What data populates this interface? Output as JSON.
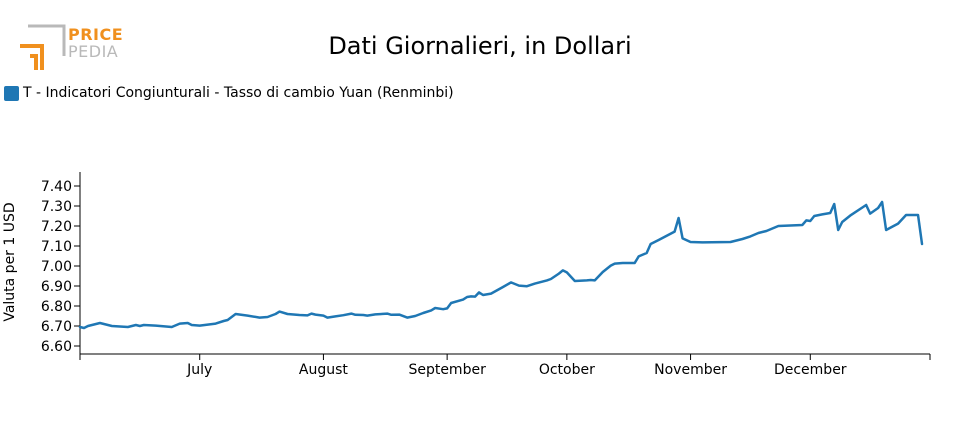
{
  "logo": {
    "line1": "PRICE",
    "line2": "PEDIA"
  },
  "chart_data": {
    "type": "line",
    "title": "Dati Giornalieri, in Dollari",
    "ylabel": "Valuta per 1 USD",
    "xlabel": "",
    "ylim": [
      6.56,
      7.47
    ],
    "yticks": [
      "6.60",
      "6.70",
      "6.80",
      "6.90",
      "7.00",
      "7.10",
      "7.20",
      "7.30",
      "7.40"
    ],
    "xlim": [
      "2022-06-01",
      "2022-12-31"
    ],
    "xticks": [
      {
        "date": "2022-07-01",
        "label": "July"
      },
      {
        "date": "2022-08-01",
        "label": "August"
      },
      {
        "date": "2022-09-01",
        "label": "September"
      },
      {
        "date": "2022-10-01",
        "label": "October"
      },
      {
        "date": "2022-11-01",
        "label": "November"
      },
      {
        "date": "2022-12-01",
        "label": "December"
      }
    ],
    "series": [
      {
        "name": "T - Indicatori Congiunturali - Tasso di cambio Yuan (Renminbi)",
        "color": "#1f77b4",
        "points": [
          [
            "2022-06-01",
            6.695
          ],
          [
            "2022-06-02",
            6.69
          ],
          [
            "2022-06-03",
            6.7
          ],
          [
            "2022-06-06",
            6.715
          ],
          [
            "2022-06-07",
            6.71
          ],
          [
            "2022-06-09",
            6.7
          ],
          [
            "2022-06-13",
            6.695
          ],
          [
            "2022-06-14",
            6.7
          ],
          [
            "2022-06-15",
            6.705
          ],
          [
            "2022-06-16",
            6.7
          ],
          [
            "2022-06-17",
            6.705
          ],
          [
            "2022-06-20",
            6.702
          ],
          [
            "2022-06-24",
            6.695
          ],
          [
            "2022-06-26",
            6.712
          ],
          [
            "2022-06-28",
            6.715
          ],
          [
            "2022-06-29",
            6.705
          ],
          [
            "2022-07-01",
            6.702
          ],
          [
            "2022-07-05",
            6.712
          ],
          [
            "2022-07-07",
            6.725
          ],
          [
            "2022-07-08",
            6.73
          ],
          [
            "2022-07-10",
            6.76
          ],
          [
            "2022-07-13",
            6.752
          ],
          [
            "2022-07-16",
            6.742
          ],
          [
            "2022-07-18",
            6.745
          ],
          [
            "2022-07-20",
            6.76
          ],
          [
            "2022-07-21",
            6.772
          ],
          [
            "2022-07-23",
            6.76
          ],
          [
            "2022-07-26",
            6.755
          ],
          [
            "2022-07-28",
            6.753
          ],
          [
            "2022-07-29",
            6.762
          ],
          [
            "2022-07-30",
            6.757
          ],
          [
            "2022-08-01",
            6.752
          ],
          [
            "2022-08-02",
            6.742
          ],
          [
            "2022-08-04",
            6.748
          ],
          [
            "2022-08-06",
            6.754
          ],
          [
            "2022-08-08",
            6.762
          ],
          [
            "2022-08-09",
            6.756
          ],
          [
            "2022-08-11",
            6.755
          ],
          [
            "2022-08-12",
            6.752
          ],
          [
            "2022-08-14",
            6.758
          ],
          [
            "2022-08-17",
            6.762
          ],
          [
            "2022-08-18",
            6.756
          ],
          [
            "2022-08-20",
            6.757
          ],
          [
            "2022-08-22",
            6.742
          ],
          [
            "2022-08-24",
            6.75
          ],
          [
            "2022-08-26",
            6.765
          ],
          [
            "2022-08-28",
            6.778
          ],
          [
            "2022-08-29",
            6.79
          ],
          [
            "2022-08-31",
            6.784
          ],
          [
            "2022-09-01",
            6.788
          ],
          [
            "2022-09-02",
            6.815
          ],
          [
            "2022-09-05",
            6.832
          ],
          [
            "2022-09-06",
            6.845
          ],
          [
            "2022-09-07",
            6.848
          ],
          [
            "2022-09-08",
            6.847
          ],
          [
            "2022-09-09",
            6.868
          ],
          [
            "2022-09-10",
            6.855
          ],
          [
            "2022-09-12",
            6.862
          ],
          [
            "2022-09-15",
            6.895
          ],
          [
            "2022-09-17",
            6.918
          ],
          [
            "2022-09-19",
            6.902
          ],
          [
            "2022-09-21",
            6.899
          ],
          [
            "2022-09-23",
            6.912
          ],
          [
            "2022-09-26",
            6.928
          ],
          [
            "2022-09-27",
            6.935
          ],
          [
            "2022-09-29",
            6.962
          ],
          [
            "2022-09-30",
            6.978
          ],
          [
            "2022-10-01",
            6.968
          ],
          [
            "2022-10-03",
            6.925
          ],
          [
            "2022-10-06",
            6.928
          ],
          [
            "2022-10-07",
            6.93
          ],
          [
            "2022-10-08",
            6.928
          ],
          [
            "2022-10-10",
            6.97
          ],
          [
            "2022-10-12",
            7.002
          ],
          [
            "2022-10-13",
            7.012
          ],
          [
            "2022-10-15",
            7.015
          ],
          [
            "2022-10-18",
            7.015
          ],
          [
            "2022-10-19",
            7.048
          ],
          [
            "2022-10-21",
            7.065
          ],
          [
            "2022-10-22",
            7.11
          ],
          [
            "2022-10-24",
            7.13
          ],
          [
            "2022-10-28",
            7.172
          ],
          [
            "2022-10-29",
            7.24
          ],
          [
            "2022-10-30",
            7.138
          ],
          [
            "2022-11-01",
            7.12
          ],
          [
            "2022-11-04",
            7.118
          ],
          [
            "2022-11-11",
            7.12
          ],
          [
            "2022-11-14",
            7.135
          ],
          [
            "2022-11-16",
            7.148
          ],
          [
            "2022-11-18",
            7.165
          ],
          [
            "2022-11-20",
            7.175
          ],
          [
            "2022-11-23",
            7.2
          ],
          [
            "2022-11-29",
            7.205
          ],
          [
            "2022-11-30",
            7.228
          ],
          [
            "2022-12-01",
            7.225
          ],
          [
            "2022-12-02",
            7.25
          ],
          [
            "2022-12-04",
            7.258
          ],
          [
            "2022-12-06",
            7.265
          ],
          [
            "2022-12-07",
            7.31
          ],
          [
            "2022-12-08",
            7.18
          ],
          [
            "2022-12-09",
            7.22
          ],
          [
            "2022-12-11",
            7.252
          ],
          [
            "2022-12-15",
            7.305
          ],
          [
            "2022-12-16",
            7.262
          ],
          [
            "2022-12-18",
            7.29
          ],
          [
            "2022-12-19",
            7.32
          ],
          [
            "2022-12-20",
            7.18
          ],
          [
            "2022-12-23",
            7.212
          ],
          [
            "2022-12-25",
            7.255
          ],
          [
            "2022-12-27",
            7.255
          ],
          [
            "2022-12-28",
            7.255
          ],
          [
            "2022-12-29",
            7.11
          ]
        ]
      }
    ]
  }
}
